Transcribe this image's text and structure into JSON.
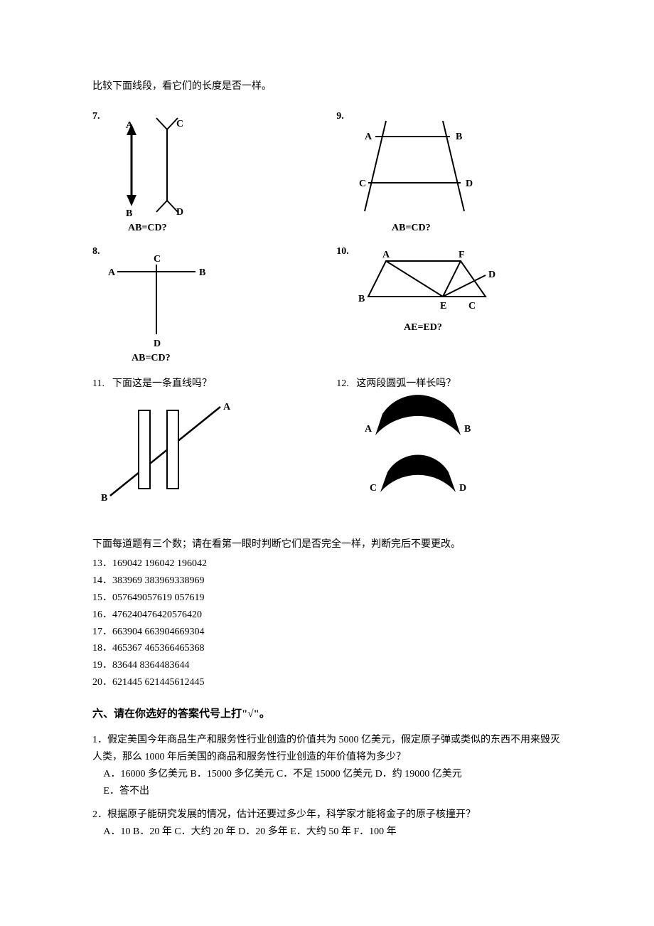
{
  "colors": {
    "ink": "#000000",
    "bg": "#ffffff"
  },
  "fonts": {
    "body_family": "SimSun",
    "body_size_pt": 10.5,
    "heading_size_pt": 11.5,
    "heading_weight": "bold"
  },
  "intro_line_segments": "比较下面线段，看它们的长度是否一样。",
  "figures": {
    "q7": {
      "num": "7.",
      "labels": {
        "A": "A",
        "B": "B",
        "C": "C",
        "D": "D"
      },
      "caption": "AB=CD?"
    },
    "q8": {
      "num": "8.",
      "labels": {
        "A": "A",
        "B": "B",
        "C": "C",
        "D": "D"
      },
      "caption": "AB=CD?"
    },
    "q9": {
      "num": "9.",
      "labels": {
        "A": "A",
        "B": "B",
        "C": "C",
        "D": "D"
      },
      "caption": "AB=CD?"
    },
    "q10": {
      "num": "10.",
      "labels": {
        "A": "A",
        "B": "B",
        "C": "C",
        "D": "D",
        "E": "E",
        "F": "F"
      },
      "caption": "AE=ED?"
    },
    "q11": {
      "num": "11.",
      "question": "下面这是一条直线吗？",
      "labels": {
        "A": "A",
        "B": "B"
      }
    },
    "q12": {
      "num": "12.",
      "question": "这两段圆弧一样长吗？",
      "labels": {
        "A": "A",
        "B": "B",
        "C": "C",
        "D": "D"
      }
    }
  },
  "numbers_intro": "下面每道题有三个数；请在看第一眼时判断它们是否完全一样，判断完后不要更改。",
  "number_items": [
    "13．169042   196042    196042",
    "14．383969   383969338969",
    "15．057649057619  057619",
    "16．476240476420576420",
    "17．663904   663904669304",
    "18．465367   465366465368",
    "19．83644    8364483644",
    "20．621445   621445612445"
  ],
  "section6_heading": "六、请在你选好的答案代号上打\"√\"。",
  "mc": {
    "q1": {
      "stem": "1．假定美国今年商品生产和服务性行业创造的价值共为 5000 亿美元，假定原子弹或类似的东西不用来毁灭人类，那么 1000 年后美国的商品和服务性行业创造的年价值将为多少？",
      "options": "A．16000 多亿美元   B．15000 多亿美元    C．不足 15000 亿美元     D．约 19000 亿美元\nE．答不出"
    },
    "q2": {
      "stem": "2．根据原子能研究发展的情况，估计还要过多少年，科学家才能将金子的原子核撞开？",
      "options": "A．10     B．20 年    C．大约 20 年   D．20 多年    E．大约 50 年    F．100 年"
    }
  }
}
